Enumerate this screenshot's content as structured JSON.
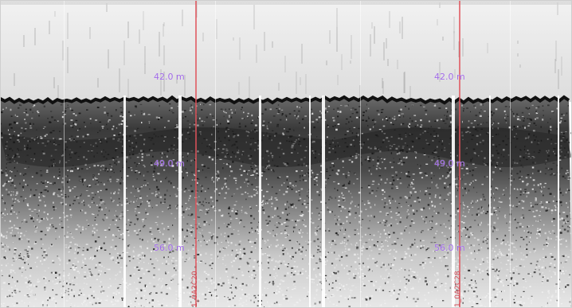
{
  "profile": {
    "colors": {
      "water": "#e6e6e6",
      "seabed": "#111111",
      "marker_line": "#e0525a",
      "depth_label": "#a16be8",
      "marker_caption": "#d04a55"
    },
    "markers": [
      {
        "name": "left",
        "depth_labels": [
          "42.0 m",
          "49.0 m",
          "56.0 m"
        ],
        "caption": "1_0A2C20"
      },
      {
        "name": "right",
        "depth_labels": [
          "42.0 m",
          "49.0 m",
          "56.0 m"
        ],
        "caption": "1_0A2C28"
      }
    ]
  }
}
